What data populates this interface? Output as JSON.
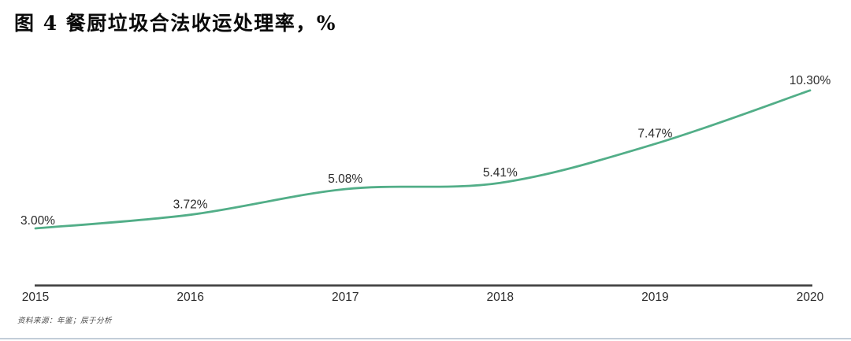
{
  "figure": {
    "title": "图 4 餐厨垃圾合法收运处理率，%",
    "source_note": "资料来源：年鉴；辰于分析"
  },
  "chart_data": {
    "type": "line",
    "title": "餐厨垃圾合法收运处理率",
    "unit": "%",
    "categories": [
      "2015",
      "2016",
      "2017",
      "2018",
      "2019",
      "2020"
    ],
    "series": [
      {
        "name": "餐厨垃圾合法收运处理率",
        "values": [
          3.0,
          3.72,
          5.08,
          5.41,
          7.47,
          10.3
        ]
      }
    ],
    "data_labels": [
      "3.00%",
      "3.72%",
      "5.08%",
      "5.41%",
      "7.47%",
      "10.30%"
    ],
    "xlabel": "",
    "ylabel": "",
    "ylim": [
      0,
      11.5
    ],
    "grid": false,
    "legend_position": "none",
    "line_color": "#52ae88",
    "axis_color": "#3c3c3c",
    "label_color": "#2b2b2b"
  }
}
